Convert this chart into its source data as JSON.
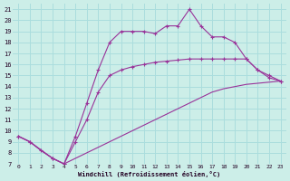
{
  "xlabel": "Windchill (Refroidissement éolien,°C)",
  "bg_color": "#cceee8",
  "grid_color": "#aadddd",
  "line_color": "#993399",
  "xlim": [
    -0.5,
    23.5
  ],
  "ylim": [
    7,
    21.5
  ],
  "xticks": [
    0,
    1,
    2,
    3,
    4,
    5,
    6,
    7,
    8,
    9,
    10,
    11,
    12,
    13,
    14,
    15,
    16,
    17,
    18,
    19,
    20,
    21,
    22,
    23
  ],
  "yticks": [
    7,
    8,
    9,
    10,
    11,
    12,
    13,
    14,
    15,
    16,
    17,
    18,
    19,
    20,
    21
  ],
  "line1_x": [
    0,
    1,
    2,
    3,
    4,
    5,
    6,
    7,
    8,
    9,
    10,
    11,
    12,
    13,
    14,
    15,
    16,
    17,
    18,
    19,
    20,
    21,
    22,
    23
  ],
  "line1_y": [
    9.5,
    9.0,
    8.2,
    7.5,
    7.0,
    7.5,
    8.0,
    8.5,
    9.0,
    9.5,
    10.0,
    10.5,
    11.0,
    11.5,
    12.0,
    12.5,
    13.0,
    13.5,
    13.8,
    14.0,
    14.2,
    14.3,
    14.4,
    14.5
  ],
  "line2_x": [
    0,
    1,
    2,
    3,
    4,
    5,
    6,
    7,
    8,
    9,
    10,
    11,
    12,
    13,
    14,
    15,
    16,
    17,
    18,
    19,
    20,
    21,
    22,
    23
  ],
  "line2_y": [
    9.5,
    9.0,
    8.2,
    7.5,
    7.0,
    9.0,
    11.0,
    13.5,
    15.0,
    15.5,
    15.8,
    16.0,
    16.2,
    16.3,
    16.4,
    16.5,
    16.5,
    16.5,
    16.5,
    16.5,
    16.5,
    15.5,
    15.0,
    14.5
  ],
  "line3_x": [
    0,
    1,
    3,
    4,
    5,
    6,
    7,
    8,
    9,
    10,
    11,
    12,
    13,
    14,
    15,
    16,
    17,
    18,
    19,
    20,
    21,
    22,
    23
  ],
  "line3_y": [
    9.5,
    9.0,
    7.5,
    7.0,
    9.5,
    12.5,
    15.5,
    18.0,
    19.0,
    19.0,
    19.0,
    18.8,
    19.5,
    19.5,
    21.0,
    19.5,
    18.5,
    18.5,
    18.0,
    16.5,
    15.5,
    14.8,
    14.5
  ]
}
